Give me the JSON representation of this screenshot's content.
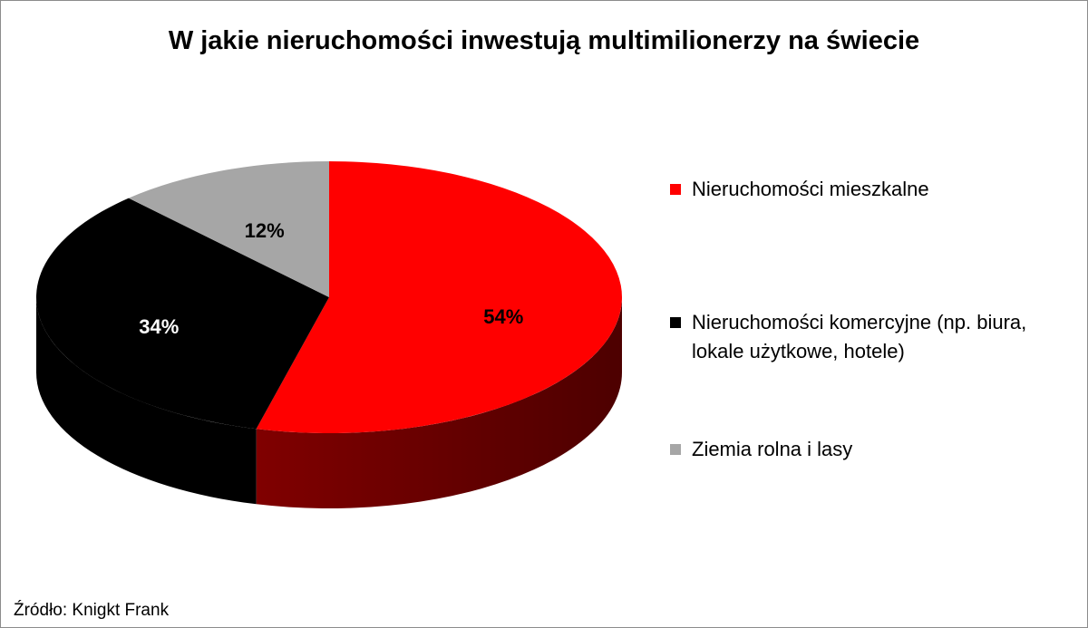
{
  "chart_data": {
    "type": "pie",
    "title": "W jakie nieruchomości inwestują multimilionerzy na świecie",
    "categories": [
      "Nieruchomości mieszkalne",
      "Nieruchomości komercyjne (np. biura, lokale użytkowe, hotele)",
      "Ziemia rolna i lasy"
    ],
    "values": [
      54,
      34,
      12
    ],
    "value_labels": [
      "54%",
      "34%",
      "12%"
    ],
    "colors": [
      "#ff0000",
      "#000000",
      "#a6a6a6"
    ],
    "legend": "right",
    "source": "Źródło: Knigkt Frank"
  }
}
